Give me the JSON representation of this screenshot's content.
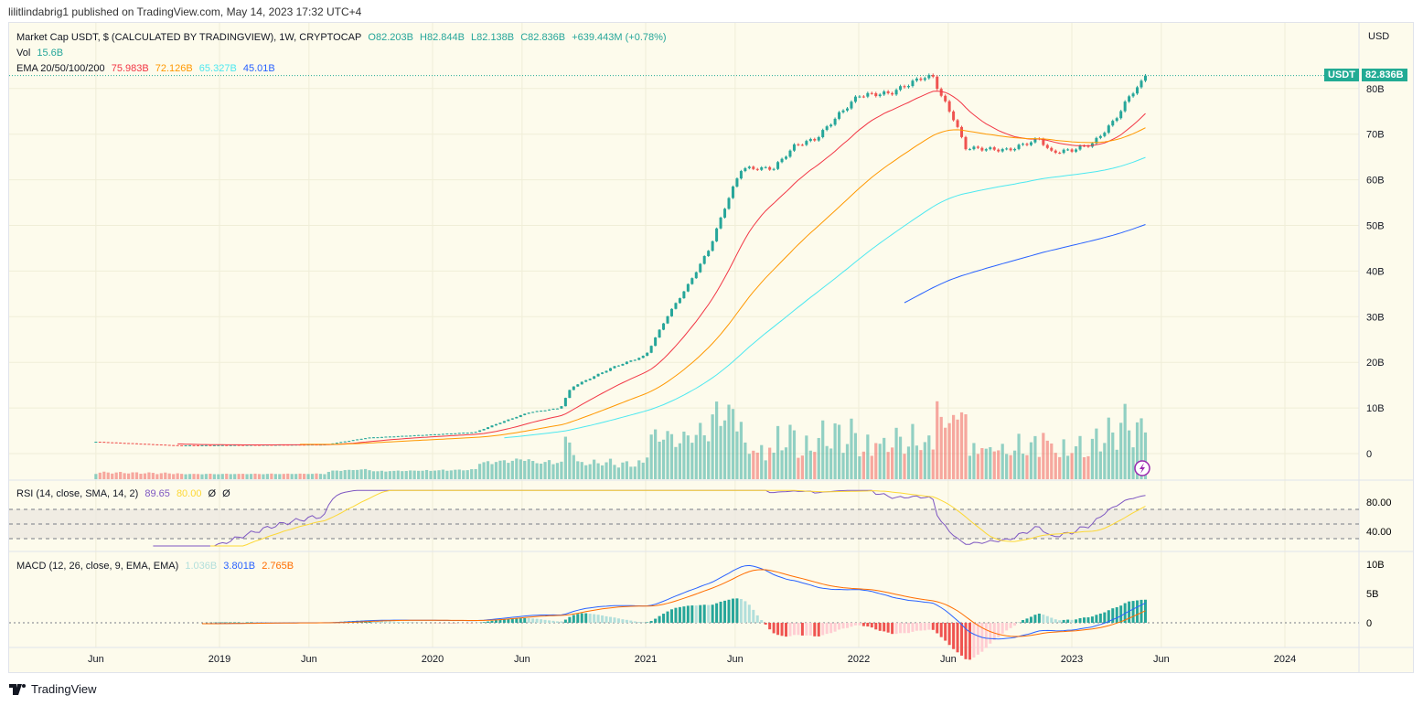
{
  "publisher_line": "lilitlindabrig1 published on TradingView.com, May 14, 2023 17:32 UTC+4",
  "legend": {
    "symbol": "Market Cap USDT, $ (CALCULATED BY TRADINGVIEW), 1W, CRYPTOCAP",
    "open": "O82.203B",
    "high": "H82.844B",
    "low": "L82.138B",
    "close": "C82.836B",
    "change": "+639.443M (+0.78%)",
    "vol_label": "Vol",
    "vol_value": "15.6B",
    "ema_label": "EMA 20/50/100/200",
    "ema20": "75.983B",
    "ema50": "72.126B",
    "ema100": "65.327B",
    "ema200": "45.01B",
    "rsi_label": "RSI (14, close, SMA, 14, 2)",
    "rsi_value": "89.65",
    "rsi_ma": "80.00",
    "rsi_x1": "Ø",
    "rsi_x2": "Ø",
    "macd_label": "MACD (12, 26, close, 9, EMA, EMA)",
    "macd_hist": "1.036B",
    "macd_line": "3.801B",
    "macd_signal": "2.765B"
  },
  "price_axis": {
    "currency": "USD",
    "ticks": [
      "80B",
      "70B",
      "60B",
      "50B",
      "40B",
      "30B",
      "20B",
      "10B",
      "0"
    ],
    "symbol_tag": "USDT",
    "last_price": "82.836B"
  },
  "rsi_axis": [
    "80.00",
    "40.00"
  ],
  "macd_axis": [
    "10B",
    "5B",
    "0"
  ],
  "time_axis": [
    "Jun",
    "2019",
    "Jun",
    "2020",
    "Jun",
    "2021",
    "Jun",
    "2022",
    "Jun",
    "2023",
    "Jun",
    "2024"
  ],
  "footer": {
    "brand": "TradingView"
  },
  "colors": {
    "up": "#26a69a",
    "down": "#ef5350",
    "ema20": "#f23645",
    "ema50": "#ff9800",
    "ema100": "#4de8f0",
    "ema200": "#2962ff",
    "rsi": "#7e57c2",
    "rsi_ma": "#fdd835",
    "macd": "#2962ff",
    "signal": "#ff6d00"
  },
  "chart_data": {
    "type": "candlestick",
    "title": "Market Cap USDT, 1W, CRYPTOCAP",
    "ylabel": "USD (B)",
    "ylim": [
      0,
      82.836
    ],
    "keypoints_year": [
      2018.42,
      2018.8,
      2019.5,
      2019.7,
      2020.0,
      2020.2,
      2020.3,
      2020.45,
      2020.6,
      2020.65,
      2020.85,
      2021.0,
      2021.1,
      2021.2,
      2021.3,
      2021.38,
      2021.45,
      2021.6,
      2021.7,
      2021.8,
      2021.9,
      2022.0,
      2022.15,
      2022.3,
      2022.35,
      2022.38,
      2022.45,
      2022.5,
      2022.7,
      2022.85,
      2022.9,
      2023.0,
      2023.1,
      2023.2,
      2023.28,
      2023.36
    ],
    "keypoints_close_B": [
      2.6,
      1.8,
      2.0,
      3.5,
      4.2,
      4.7,
      6.5,
      9,
      10,
      14.5,
      19,
      21.5,
      30,
      37,
      45,
      55,
      62.5,
      62.5,
      67.5,
      69,
      74,
      78.5,
      79,
      82.5,
      82.5,
      79,
      73,
      67,
      66.5,
      69,
      66,
      66.5,
      68,
      73,
      79,
      82.836
    ]
  }
}
